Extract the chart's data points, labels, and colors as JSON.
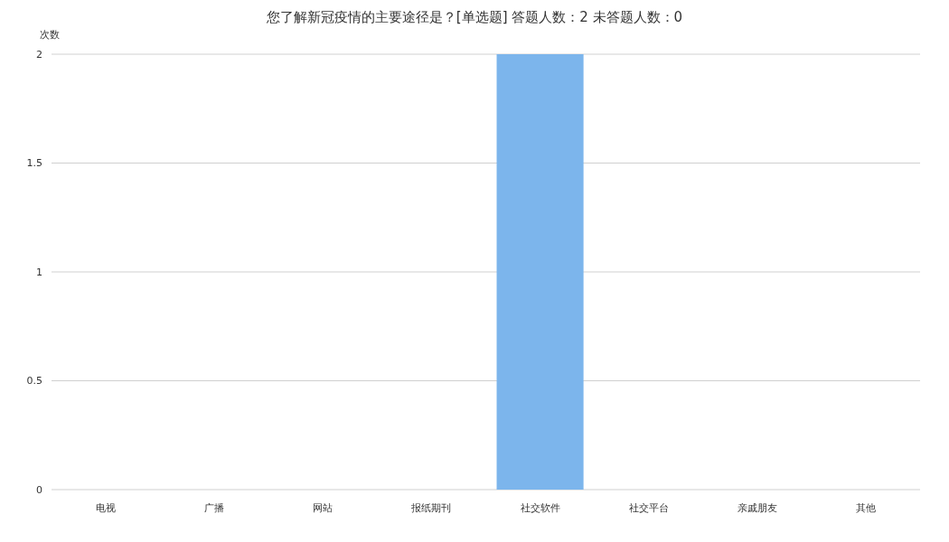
{
  "chart_data": {
    "type": "bar",
    "title": "您了解新冠疫情的主要途径是？[单选题]  答题人数：2  未答题人数：0",
    "ylabel": "次数",
    "categories": [
      "电视",
      "广播",
      "网站",
      "报纸期刊",
      "社交软件",
      "社交平台",
      "亲戚朋友",
      "其他"
    ],
    "values": [
      0,
      0,
      0,
      0,
      2,
      0,
      0,
      0
    ],
    "color": "#7cb5ec",
    "ylim": [
      0,
      2
    ],
    "yticks": [
      0,
      0.5,
      1,
      1.5,
      2
    ],
    "grid": "y"
  }
}
